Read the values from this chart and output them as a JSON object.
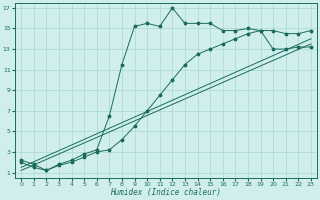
{
  "xlabel": "Humidex (Indice chaleur)",
  "xlim": [
    -0.5,
    23.5
  ],
  "ylim": [
    0.5,
    17.5
  ],
  "xticks": [
    0,
    1,
    2,
    3,
    4,
    5,
    6,
    7,
    8,
    9,
    10,
    11,
    12,
    13,
    14,
    15,
    16,
    17,
    18,
    19,
    20,
    21,
    22,
    23
  ],
  "yticks": [
    1,
    3,
    5,
    7,
    9,
    11,
    13,
    15,
    17
  ],
  "background_color": "#d0eeec",
  "grid_color": "#a8d8d4",
  "line_color": "#1a6b5e",
  "curve1_x": [
    0,
    1,
    2,
    3,
    4,
    5,
    6,
    7,
    8,
    9,
    10,
    11,
    12,
    13,
    14,
    15,
    16,
    17,
    18,
    19,
    20,
    21,
    22,
    23
  ],
  "curve1_y": [
    2.2,
    1.8,
    1.2,
    1.8,
    2.2,
    2.8,
    3.2,
    6.5,
    11.5,
    15.2,
    15.5,
    15.2,
    17.0,
    15.5,
    15.5,
    15.5,
    14.8,
    14.8,
    15.0,
    14.8,
    14.8,
    14.5,
    14.5,
    14.8
  ],
  "curve2_x": [
    0,
    1,
    2,
    3,
    4,
    5,
    6,
    7,
    8,
    9,
    10,
    11,
    12,
    13,
    14,
    15,
    16,
    17,
    18,
    19,
    20,
    21,
    22,
    23
  ],
  "curve2_y": [
    2.0,
    1.5,
    1.2,
    1.7,
    2.0,
    2.5,
    3.0,
    3.2,
    4.2,
    5.5,
    7.0,
    8.5,
    10.0,
    11.5,
    12.5,
    13.0,
    13.5,
    14.0,
    14.5,
    14.8,
    13.0,
    13.0,
    13.2,
    13.2
  ],
  "curve3_x": [
    0,
    23
  ],
  "curve3_y": [
    1.5,
    14.0
  ],
  "curve4_x": [
    0,
    23
  ],
  "curve4_y": [
    1.2,
    13.5
  ]
}
